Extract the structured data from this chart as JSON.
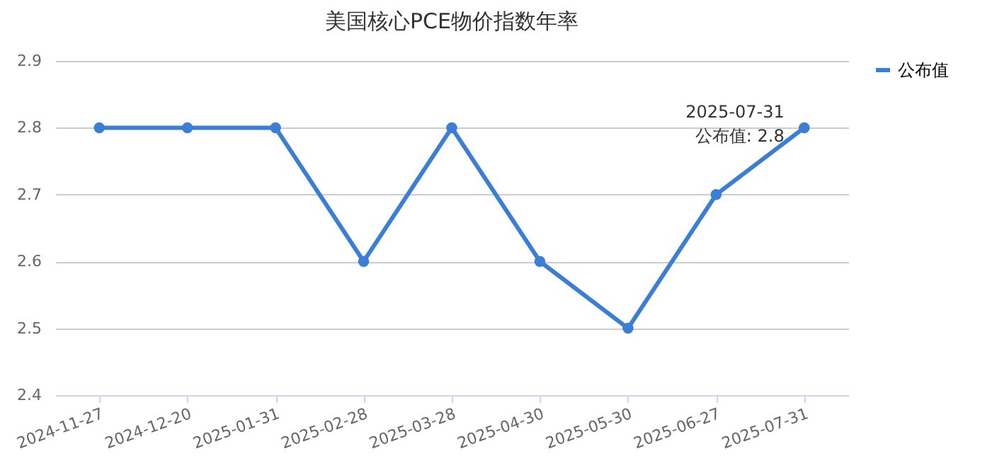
{
  "chart_data": {
    "type": "line",
    "title": "美国核心PCE物价指数年率",
    "categories": [
      "2024-11-27",
      "2024-12-20",
      "2025-01-31",
      "2025-02-28",
      "2025-03-28",
      "2025-04-30",
      "2025-05-30",
      "2025-06-27",
      "2025-07-31"
    ],
    "series": [
      {
        "name": "公布值",
        "color": "#3a7fd5",
        "values": [
          2.8,
          2.8,
          2.8,
          2.6,
          2.8,
          2.6,
          2.5,
          2.7,
          2.8
        ]
      }
    ],
    "ylim": [
      2.4,
      2.9
    ],
    "yticks": [
      2.4,
      2.5,
      2.6,
      2.7,
      2.8,
      2.9
    ],
    "grid": "y",
    "legend": "right",
    "marker": "circle",
    "line_style": "solid",
    "annotations": [
      {
        "text": "2025-07-31\n公布值: 2.8",
        "x": "2025-07-31",
        "y": 2.8
      }
    ]
  }
}
